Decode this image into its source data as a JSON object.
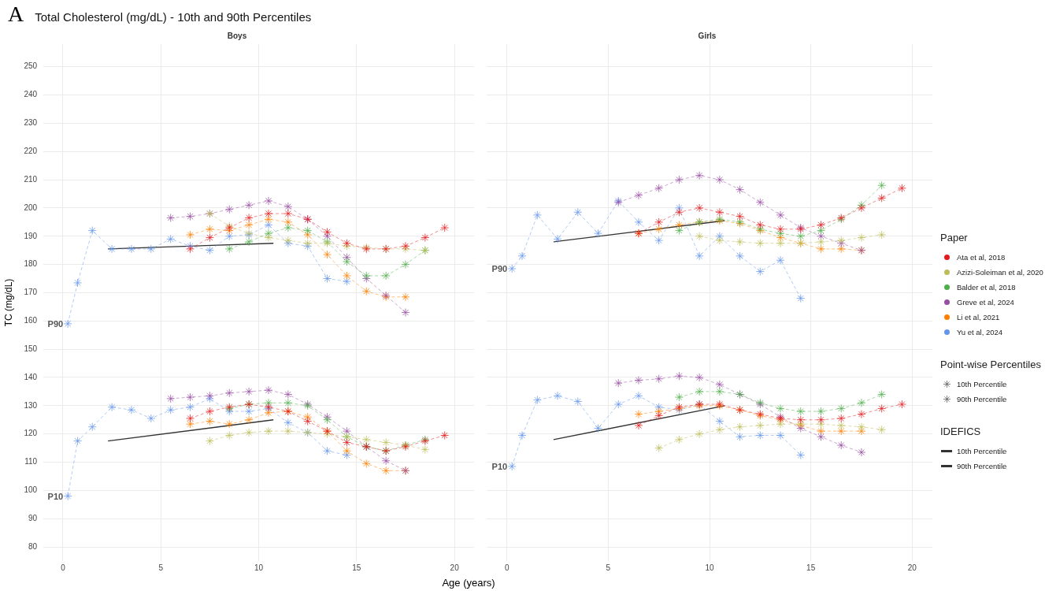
{
  "chart_data": [
    {
      "type": "line",
      "title": "Total Cholesterol (mg/dL) - 10th and 90th Percentiles",
      "subtitle": "Boys",
      "xlabel": "Age (years)",
      "ylabel": "TC (mg/dL)",
      "xlim": [
        -1,
        21
      ],
      "xticks": [
        0,
        5,
        10,
        15,
        20
      ],
      "ylim": [
        75,
        258
      ],
      "yticks": [
        80,
        90,
        100,
        110,
        120,
        130,
        140,
        150,
        160,
        170,
        180,
        190,
        200,
        210,
        220,
        230,
        240,
        250
      ],
      "grid": true,
      "legend": "right",
      "annotations": [
        "A",
        "P90",
        "P10"
      ],
      "series": [
        {
          "name": "Ata et al, 2018",
          "color": "#e41a1c",
          "marker": "cross",
          "line_style": "dashed",
          "x": [
            6.5,
            7.5,
            8.5,
            9.5,
            10.5,
            11.5,
            12.5,
            13.5,
            14.5,
            15.5,
            16.5,
            17.5,
            18.5,
            19.5
          ],
          "values": [
            185.5,
            189.5,
            193,
            196.5,
            198,
            198,
            196,
            191.5,
            187.5,
            185.5,
            185.5,
            186.5,
            189.5,
            193
          ]
        },
        {
          "color": "#e41a1c",
          "marker": "cross",
          "line_style": "dashed",
          "x": [
            6.5,
            7.5,
            8.5,
            9.5,
            10.5,
            11.5,
            12.5,
            13.5,
            14.5,
            15.5,
            16.5,
            17.5,
            18.5,
            19.5
          ],
          "values": [
            125.5,
            128,
            129.5,
            130.5,
            129.5,
            128,
            124.5,
            121,
            117,
            115.5,
            114,
            115.5,
            117.5,
            119.5
          ]
        },
        {
          "name": "Azizi-Soleiman et al, 2020",
          "color": "#bcbd5a",
          "marker": "cross",
          "line_style": "dashed",
          "x": [
            7.5,
            8.5,
            9.5,
            10.5,
            11.5,
            12.5,
            13.5,
            14.5,
            15.5,
            16.5,
            17.5,
            18.5
          ],
          "values": [
            198,
            193.5,
            191,
            189.5,
            188.5,
            187.5,
            187.5,
            186.5,
            186,
            185.5,
            185.5,
            185
          ]
        },
        {
          "color": "#bcbd5a",
          "marker": "cross",
          "line_style": "dashed",
          "x": [
            7.5,
            8.5,
            9.5,
            10.5,
            11.5,
            12.5,
            13.5,
            14.5,
            15.5,
            16.5,
            17.5,
            18.5
          ],
          "values": [
            117.5,
            119.5,
            120.5,
            121,
            121,
            120.5,
            120,
            119,
            118,
            117,
            116,
            114.5
          ]
        },
        {
          "name": "Balder et al, 2018",
          "color": "#4daf4a",
          "marker": "cross",
          "line_style": "dashed",
          "x": [
            8.5,
            9.5,
            10.5,
            11.5,
            12.5,
            13.5,
            14.5,
            15.5,
            16.5,
            17.5,
            18.5
          ],
          "values": [
            185.5,
            188,
            191,
            193,
            192,
            188,
            181,
            176,
            176,
            180,
            185
          ]
        },
        {
          "color": "#4daf4a",
          "marker": "cross",
          "line_style": "dashed",
          "x": [
            8.5,
            9.5,
            10.5,
            11.5,
            12.5,
            13.5,
            14.5,
            15.5,
            16.5,
            17.5,
            18.5
          ],
          "values": [
            129,
            130.5,
            131,
            131,
            130,
            125,
            119,
            115.5,
            114,
            116,
            118
          ]
        },
        {
          "name": "Greve et al, 2024",
          "color": "#984ea3",
          "marker": "cross",
          "line_style": "dashed",
          "x": [
            5.5,
            6.5,
            7.5,
            8.5,
            9.5,
            10.5,
            11.5,
            12.5,
            13.5,
            14.5,
            15.5,
            16.5,
            17.5
          ],
          "values": [
            196.5,
            197,
            198,
            199.5,
            201,
            202.5,
            200.5,
            196,
            190,
            182.5,
            175,
            169,
            163
          ]
        },
        {
          "color": "#984ea3",
          "marker": "cross",
          "line_style": "dashed",
          "x": [
            5.5,
            6.5,
            7.5,
            8.5,
            9.5,
            10.5,
            11.5,
            12.5,
            13.5,
            14.5,
            15.5,
            16.5,
            17.5
          ],
          "values": [
            132.5,
            133,
            133.5,
            134.5,
            135,
            135.5,
            134,
            130.5,
            126,
            121,
            115.5,
            110.5,
            107
          ]
        },
        {
          "name": "Li et al, 2021",
          "color": "#ff7f00",
          "marker": "cross",
          "line_style": "dashed",
          "x": [
            6.5,
            7.5,
            8.5,
            9.5,
            10.5,
            11.5,
            12.5,
            13.5,
            14.5,
            15.5,
            16.5,
            17.5
          ],
          "values": [
            190.5,
            192.5,
            192,
            194,
            196,
            195,
            190.5,
            183.5,
            176,
            170.5,
            168.5,
            168.5
          ]
        },
        {
          "color": "#ff7f00",
          "marker": "cross",
          "line_style": "dashed",
          "x": [
            6.5,
            7.5,
            8.5,
            9.5,
            10.5,
            11.5,
            12.5,
            13.5,
            14.5,
            15.5,
            16.5,
            17.5
          ],
          "values": [
            123.5,
            124.5,
            123.5,
            125,
            127.5,
            128,
            126,
            121,
            114,
            109.5,
            107,
            107
          ]
        },
        {
          "name": "Yu et al, 2024",
          "color": "#6495ed",
          "marker": "cross",
          "line_style": "dashed",
          "x": [
            0.25,
            0.75,
            1.5,
            2.5,
            3.5,
            4.5,
            5.5,
            6.5,
            7.5,
            8.5,
            9.5,
            10.5,
            11.5,
            12.5,
            13.5,
            14.5
          ],
          "values": [
            159,
            173.5,
            192,
            185.5,
            185.5,
            185.5,
            189,
            186.5,
            185,
            190,
            190.5,
            194,
            187.5,
            186.5,
            175,
            174
          ]
        },
        {
          "color": "#6495ed",
          "marker": "cross",
          "line_style": "dashed",
          "x": [
            0.25,
            0.75,
            1.5,
            2.5,
            3.5,
            4.5,
            5.5,
            6.5,
            7.5,
            8.5,
            9.5,
            10.5,
            11.5,
            12.5,
            13.5,
            14.5
          ],
          "values": [
            98,
            117.5,
            122.5,
            129.5,
            128.5,
            125.5,
            128.5,
            129.5,
            132.5,
            128,
            128,
            129,
            124,
            120.5,
            114,
            112.5
          ]
        },
        {
          "name": "10th Percentile",
          "color": "#333333",
          "marker": "none",
          "line_style": "solid",
          "x": [
            2.3,
            10.75
          ],
          "values": [
            117.5,
            125
          ]
        },
        {
          "name": "90th Percentile",
          "color": "#333333",
          "marker": "none",
          "line_style": "solid",
          "x": [
            2.3,
            10.75
          ],
          "values": [
            185.5,
            187.5
          ]
        }
      ]
    },
    {
      "type": "line",
      "subtitle": "Girls",
      "xlim": [
        -1,
        21
      ],
      "xticks": [
        0,
        5,
        10,
        15,
        20
      ],
      "ylim": [
        75,
        258
      ],
      "yticks": [
        80,
        90,
        100,
        110,
        120,
        130,
        140,
        150,
        160,
        170,
        180,
        190,
        200,
        210,
        220,
        230,
        240,
        250
      ],
      "grid": true,
      "tick_labels": "x",
      "legend": "right",
      "legend_title": "Paper",
      "annotations": [
        "P90",
        "P10",
        "Point-wise Percentiles",
        "10th Percentile",
        "90th Percentile",
        "IDEFICS"
      ],
      "series": [
        {
          "name": "Ata et al, 2018",
          "color": "#e41a1c",
          "marker": "cross",
          "line_style": "dashed",
          "x": [
            6.5,
            7.5,
            8.5,
            9.5,
            10.5,
            11.5,
            12.5,
            13.5,
            14.5,
            15.5,
            16.5,
            17.5,
            18.5,
            19.5
          ],
          "values": [
            191,
            195,
            198.5,
            200,
            198.5,
            197,
            194,
            192.5,
            192.5,
            194,
            196.5,
            200,
            203.5,
            207
          ]
        },
        {
          "color": "#e41a1c",
          "marker": "cross",
          "line_style": "dashed",
          "x": [
            6.5,
            7.5,
            8.5,
            9.5,
            10.5,
            11.5,
            12.5,
            13.5,
            14.5,
            15.5,
            16.5,
            17.5,
            18.5,
            19.5
          ],
          "values": [
            123,
            126.5,
            129.5,
            130.5,
            130.5,
            128.5,
            127,
            125.5,
            125,
            125,
            125.5,
            127,
            129,
            130.5
          ]
        },
        {
          "name": "Azizi-Soleiman et al, 2020",
          "color": "#bcbd5a",
          "marker": "cross",
          "line_style": "dashed",
          "x": [
            9.5,
            10.5,
            11.5,
            12.5,
            13.5,
            14.5,
            15.5,
            16.5,
            17.5,
            18.5
          ],
          "values": [
            190,
            188.5,
            188,
            187.5,
            187.5,
            187.5,
            188,
            188.5,
            189.5,
            190.5
          ]
        },
        {
          "color": "#bcbd5a",
          "marker": "cross",
          "line_style": "dashed",
          "x": [
            7.5,
            8.5,
            9.5,
            10.5,
            11.5,
            12.5,
            13.5,
            14.5,
            15.5,
            16.5,
            17.5,
            18.5
          ],
          "values": [
            115,
            118,
            120,
            121.5,
            122.5,
            123,
            123.5,
            123.5,
            123.5,
            123,
            122.5,
            121.5
          ]
        },
        {
          "name": "Balder et al, 2018",
          "color": "#4daf4a",
          "marker": "cross",
          "line_style": "dashed",
          "x": [
            8.5,
            9.5,
            10.5,
            11.5,
            12.5,
            13.5,
            14.5,
            15.5,
            16.5,
            17.5,
            18.5
          ],
          "values": [
            192,
            195,
            196,
            195,
            192.5,
            191,
            190,
            192,
            196,
            201,
            208
          ]
        },
        {
          "color": "#4daf4a",
          "marker": "cross",
          "line_style": "dashed",
          "x": [
            8.5,
            9.5,
            10.5,
            11.5,
            12.5,
            13.5,
            14.5,
            15.5,
            16.5,
            17.5,
            18.5
          ],
          "values": [
            133,
            135,
            135,
            134,
            131,
            129,
            128,
            128,
            129,
            131,
            134
          ]
        },
        {
          "name": "Greve et al, 2024",
          "color": "#984ea3",
          "marker": "cross",
          "line_style": "dashed",
          "x": [
            5.5,
            6.5,
            7.5,
            8.5,
            9.5,
            10.5,
            11.5,
            12.5,
            13.5,
            14.5,
            15.5,
            16.5,
            17.5
          ],
          "values": [
            202,
            204.5,
            207,
            210,
            211.5,
            210,
            206.5,
            202,
            197.5,
            193,
            190,
            187.5,
            185
          ]
        },
        {
          "color": "#984ea3",
          "marker": "cross",
          "line_style": "dashed",
          "x": [
            5.5,
            6.5,
            7.5,
            8.5,
            9.5,
            10.5,
            11.5,
            12.5,
            13.5,
            14.5,
            15.5,
            16.5,
            17.5
          ],
          "values": [
            138,
            139,
            139.5,
            140.5,
            140,
            137.5,
            134,
            130.5,
            126,
            122,
            119,
            116,
            113.5
          ]
        },
        {
          "name": "Li et al, 2021",
          "color": "#ff7f00",
          "marker": "cross",
          "line_style": "dashed",
          "x": [
            6.5,
            7.5,
            8.5,
            9.5,
            10.5,
            11.5,
            12.5,
            13.5,
            14.5,
            15.5,
            16.5,
            17.5
          ],
          "values": [
            191,
            192.5,
            194,
            195,
            195.5,
            194.5,
            192,
            189.5,
            187.5,
            185.5,
            185.5,
            185
          ]
        },
        {
          "color": "#ff7f00",
          "marker": "cross",
          "line_style": "dashed",
          "x": [
            6.5,
            7.5,
            8.5,
            9.5,
            10.5,
            11.5,
            12.5,
            13.5,
            14.5,
            15.5,
            16.5,
            17.5
          ],
          "values": [
            127,
            128,
            129,
            130,
            130,
            128.5,
            126.5,
            125,
            123,
            121,
            121,
            121
          ]
        },
        {
          "name": "Yu et al, 2024",
          "color": "#6495ed",
          "marker": "cross",
          "line_style": "dashed",
          "x": [
            0.25,
            0.75,
            1.5,
            2.5,
            3.5,
            4.5,
            5.5,
            6.5,
            7.5,
            8.5,
            9.5,
            10.5,
            11.5,
            12.5,
            13.5,
            14.5
          ],
          "values": [
            178.5,
            183,
            197.5,
            189,
            198.5,
            191,
            202.5,
            195,
            188.5,
            200,
            183,
            190,
            183,
            177.5,
            181.5,
            168
          ]
        },
        {
          "color": "#6495ed",
          "marker": "cross",
          "line_style": "dashed",
          "x": [
            0.25,
            0.75,
            1.5,
            2.5,
            3.5,
            4.5,
            5.5,
            6.5,
            7.5,
            8.5,
            9.5,
            10.5,
            11.5,
            12.5,
            13.5,
            14.5
          ],
          "values": [
            108.5,
            119.5,
            132,
            133.5,
            131.5,
            122,
            130.5,
            133.5,
            129.5,
            128.5,
            130.5,
            124.5,
            119,
            119.5,
            119.5,
            112.5
          ]
        },
        {
          "color": "#333333",
          "marker": "none",
          "line_style": "solid",
          "x": [
            2.3,
            10.75
          ],
          "values": [
            118,
            130
          ]
        },
        {
          "color": "#333333",
          "marker": "none",
          "line_style": "solid",
          "x": [
            2.3,
            10.75
          ],
          "values": [
            188,
            195.5
          ]
        }
      ]
    }
  ]
}
